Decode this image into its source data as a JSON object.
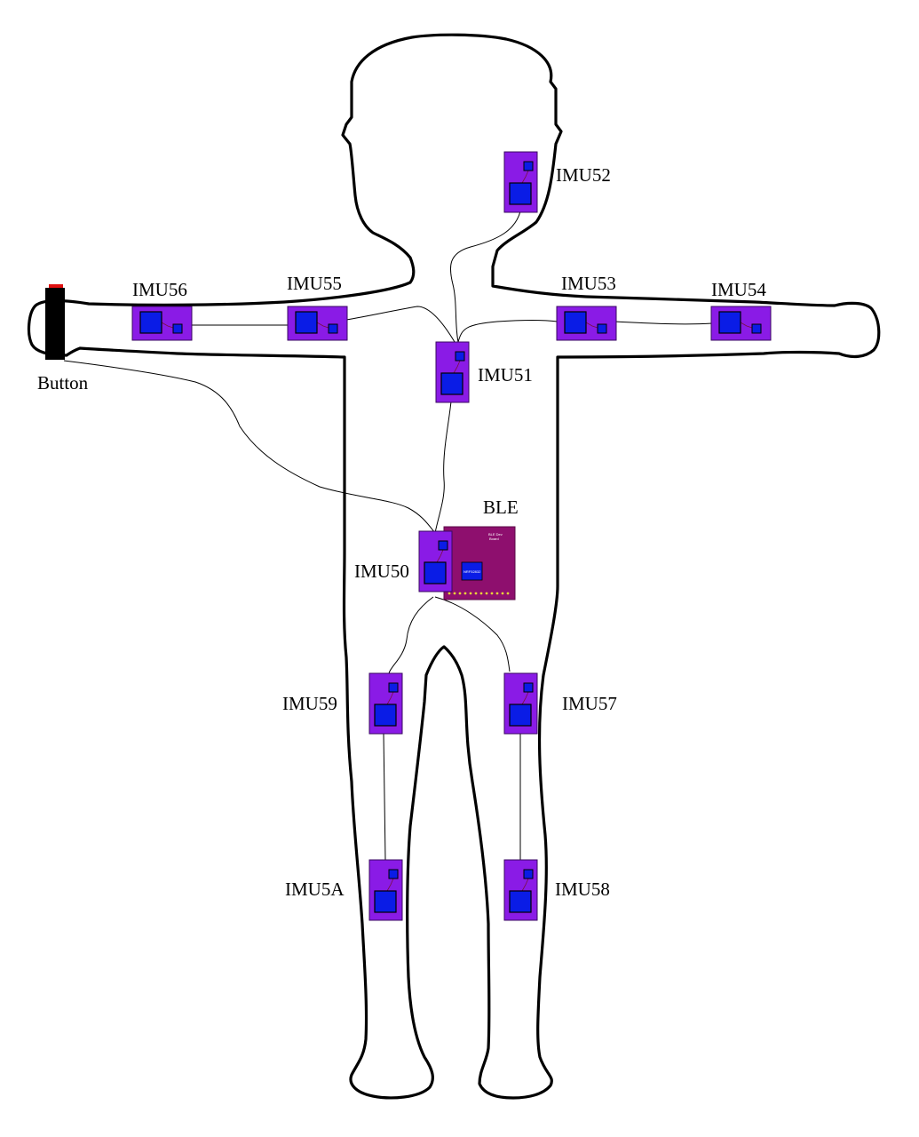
{
  "labels": {
    "button": "Button",
    "ble": "BLE",
    "ble_board_title": "BLE Dev",
    "ble_board_subtitle": "Board",
    "ble_chip": "NRF52832"
  },
  "sensors": [
    {
      "id": "IMU50",
      "label": "IMU50",
      "location": "pelvis"
    },
    {
      "id": "IMU51",
      "label": "IMU51",
      "location": "chest"
    },
    {
      "id": "IMU52",
      "label": "IMU52",
      "location": "head"
    },
    {
      "id": "IMU53",
      "label": "IMU53",
      "location": "right upper arm"
    },
    {
      "id": "IMU54",
      "label": "IMU54",
      "location": "right forearm"
    },
    {
      "id": "IMU55",
      "label": "IMU55",
      "location": "left upper arm"
    },
    {
      "id": "IMU56",
      "label": "IMU56",
      "location": "left forearm"
    },
    {
      "id": "IMU57",
      "label": "IMU57",
      "location": "right thigh"
    },
    {
      "id": "IMU58",
      "label": "IMU58",
      "location": "right shin"
    },
    {
      "id": "IMU59",
      "label": "IMU59",
      "location": "left thigh"
    },
    {
      "id": "IMU5A",
      "label": "IMU5A",
      "location": "left shin"
    }
  ],
  "colors": {
    "imu_board": "#8a1be6",
    "imu_chip": "#0a1ce6",
    "ble_board": "#8e0f6e",
    "ble_pins": "#e8d23a",
    "button_body": "#000000",
    "button_cap": "#e01010"
  }
}
